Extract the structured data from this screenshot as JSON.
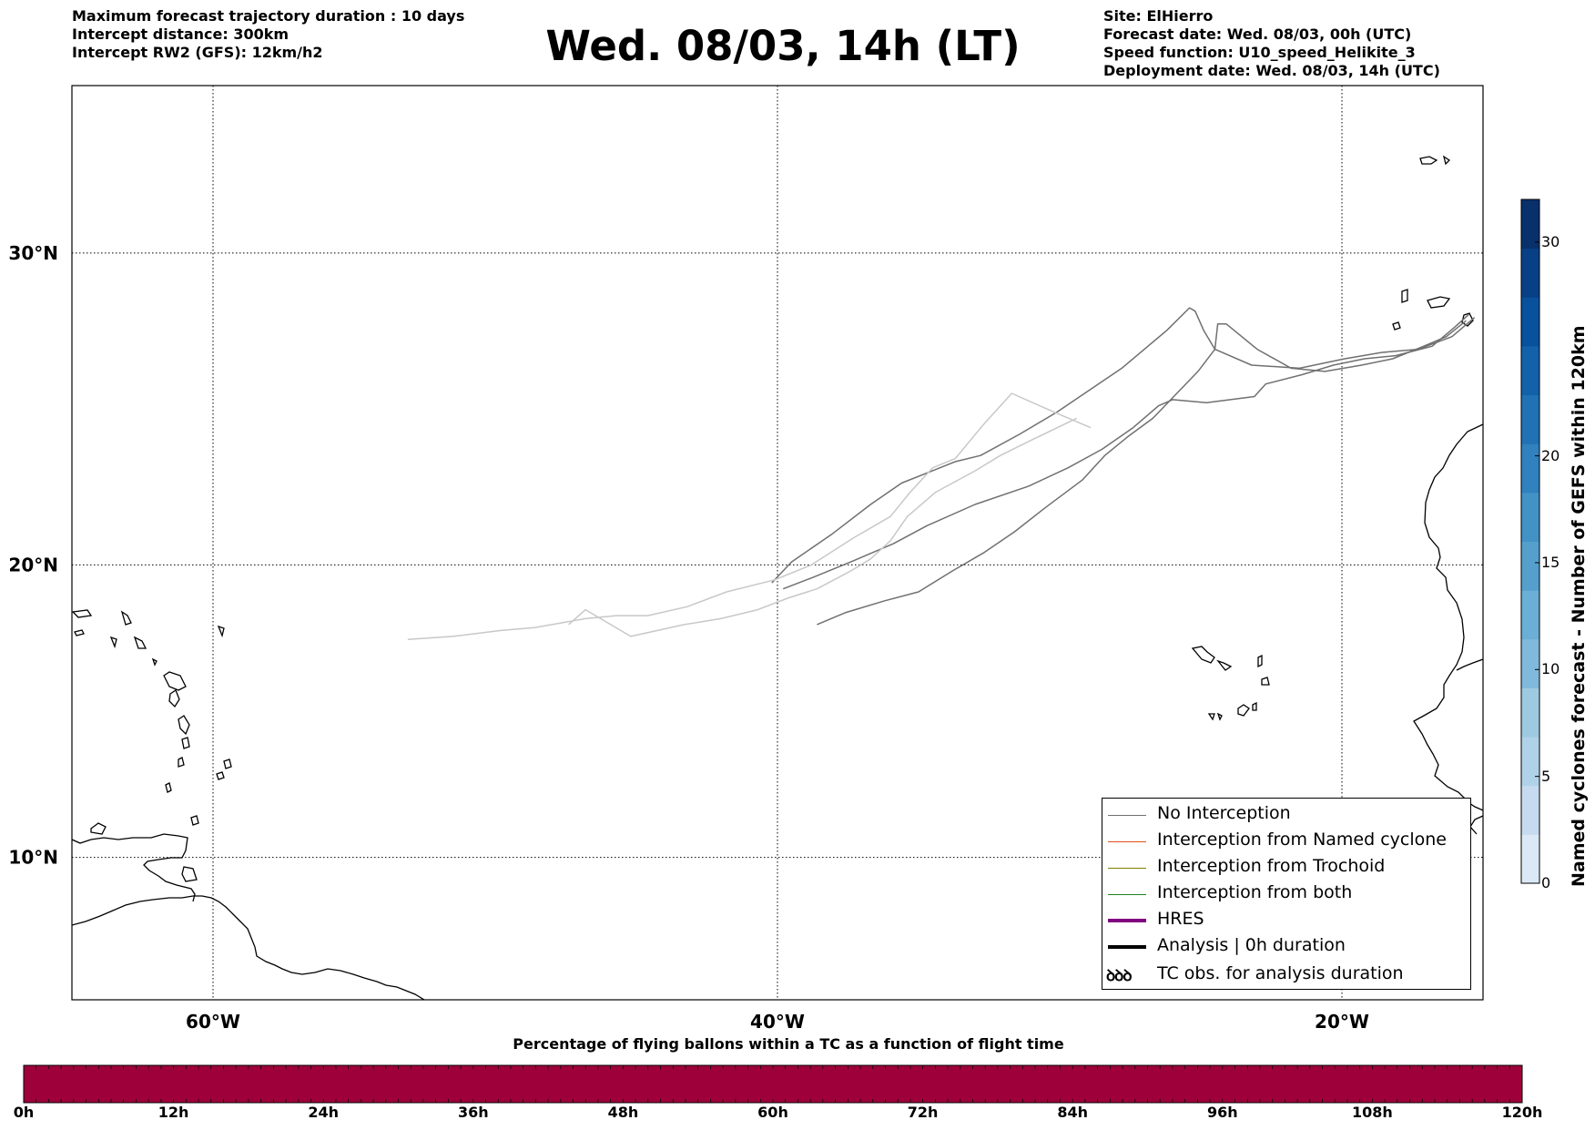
{
  "header_left": [
    "Maximum forecast trajectory duration : 10 days",
    "Intercept distance: 300km",
    "Intercept RW2 (GFS):  12km/h2"
  ],
  "title": "Wed. 08/03, 14h (LT)",
  "header_right": [
    "Site: ElHierro",
    "Forecast date: Wed. 08/03, 00h (UTC)",
    "Speed function: U10_speed_Helikite_3",
    "Deployment date: Wed. 08/03, 14h (UTC)"
  ],
  "map": {
    "lon_range": [
      -65,
      -15
    ],
    "lat_range": [
      5,
      35
    ],
    "lat_ticks": [
      {
        "value": 30,
        "label": "30°N"
      },
      {
        "value": 20,
        "label": "20°N"
      },
      {
        "value": 10,
        "label": "10°N"
      }
    ],
    "lon_ticks": [
      {
        "value": -60,
        "label": "60°W"
      },
      {
        "value": -40,
        "label": "40°W"
      },
      {
        "value": -20,
        "label": "20°W"
      }
    ],
    "gridlines": true,
    "trajectories": [
      {
        "color": "#707070",
        "points": [
          [
            -15.3,
            28.0
          ],
          [
            -16.1,
            27.4
          ],
          [
            -17.3,
            27.0
          ],
          [
            -18.6,
            26.9
          ],
          [
            -19.9,
            26.7
          ],
          [
            -21.5,
            26.4
          ],
          [
            -23.2,
            26.5
          ],
          [
            -24.5,
            27.0
          ],
          [
            -24.9,
            27.6
          ],
          [
            -25.2,
            28.2
          ],
          [
            -25.4,
            28.3
          ],
          [
            -26.2,
            27.6
          ],
          [
            -27.8,
            26.4
          ],
          [
            -30.1,
            25.0
          ],
          [
            -31.4,
            24.3
          ],
          [
            -32.8,
            23.6
          ],
          [
            -33.7,
            23.4
          ],
          [
            -35.6,
            22.7
          ],
          [
            -36.7,
            22.0
          ],
          [
            -38.1,
            21.0
          ],
          [
            -39.5,
            20.1
          ],
          [
            -40.2,
            19.4
          ]
        ]
      },
      {
        "color": "#707070",
        "points": [
          [
            -15.5,
            28.1
          ],
          [
            -16.0,
            27.7
          ],
          [
            -16.8,
            27.1
          ],
          [
            -18.1,
            26.8
          ],
          [
            -19.2,
            26.7
          ],
          [
            -20.3,
            26.5
          ],
          [
            -21.4,
            26.2
          ],
          [
            -22.7,
            25.9
          ],
          [
            -23.1,
            25.5
          ],
          [
            -24.8,
            25.3
          ],
          [
            -26.0,
            25.4
          ],
          [
            -26.5,
            25.2
          ],
          [
            -27.4,
            24.5
          ],
          [
            -28.5,
            23.8
          ],
          [
            -29.7,
            23.2
          ],
          [
            -31.1,
            22.6
          ],
          [
            -33.0,
            22.0
          ],
          [
            -34.7,
            21.3
          ],
          [
            -35.9,
            20.7
          ],
          [
            -37.4,
            20.1
          ],
          [
            -38.7,
            19.6
          ],
          [
            -39.8,
            19.2
          ]
        ]
      },
      {
        "color": "#707070",
        "points": [
          [
            -15.6,
            27.9
          ],
          [
            -16.3,
            27.4
          ],
          [
            -17.1,
            27.1
          ],
          [
            -18.2,
            26.7
          ],
          [
            -19.3,
            26.5
          ],
          [
            -20.6,
            26.3
          ],
          [
            -21.8,
            26.4
          ],
          [
            -23.0,
            27.0
          ],
          [
            -24.1,
            27.8
          ],
          [
            -24.4,
            27.8
          ],
          [
            -24.5,
            27.0
          ],
          [
            -25.1,
            26.3
          ],
          [
            -26.7,
            24.8
          ],
          [
            -27.6,
            24.2
          ],
          [
            -28.4,
            23.6
          ],
          [
            -29.2,
            22.8
          ],
          [
            -30.5,
            21.9
          ],
          [
            -31.6,
            21.1
          ],
          [
            -32.7,
            20.4
          ],
          [
            -33.8,
            19.8
          ],
          [
            -35.0,
            19.1
          ],
          [
            -36.2,
            18.8
          ],
          [
            -37.6,
            18.4
          ],
          [
            -38.6,
            18.0
          ]
        ]
      },
      {
        "color": "#c8c8c8",
        "points": [
          [
            -28.9,
            24.5
          ],
          [
            -30.2,
            25.0
          ],
          [
            -31.7,
            25.6
          ],
          [
            -32.7,
            24.6
          ],
          [
            -33.7,
            23.5
          ],
          [
            -34.5,
            23.2
          ],
          [
            -35.3,
            22.4
          ],
          [
            -36.0,
            21.6
          ],
          [
            -37.3,
            20.9
          ],
          [
            -38.8,
            20.0
          ],
          [
            -40.1,
            19.5
          ],
          [
            -41.8,
            19.1
          ],
          [
            -43.2,
            18.6
          ],
          [
            -44.6,
            18.3
          ],
          [
            -45.7,
            18.3
          ],
          [
            -46.8,
            18.2
          ],
          [
            -48.6,
            17.9
          ],
          [
            -49.8,
            17.8
          ],
          [
            -51.5,
            17.6
          ],
          [
            -53.1,
            17.5
          ]
        ]
      },
      {
        "color": "#c8c8c8",
        "points": [
          [
            -29.4,
            24.8
          ],
          [
            -31.0,
            24.1
          ],
          [
            -32.1,
            23.6
          ],
          [
            -33.0,
            23.1
          ],
          [
            -34.4,
            22.4
          ],
          [
            -35.4,
            21.6
          ],
          [
            -36.0,
            20.8
          ],
          [
            -36.7,
            20.2
          ],
          [
            -37.4,
            19.8
          ],
          [
            -38.6,
            19.2
          ],
          [
            -39.6,
            18.9
          ],
          [
            -40.7,
            18.5
          ],
          [
            -42.0,
            18.2
          ],
          [
            -43.3,
            18.0
          ],
          [
            -45.2,
            17.6
          ],
          [
            -46.8,
            18.5
          ],
          [
            -47.4,
            18.0
          ]
        ]
      }
    ]
  },
  "legend": {
    "items": [
      {
        "label": "No Interception",
        "color": "#707070",
        "width": 1
      },
      {
        "label": "Interception from Named cyclone",
        "color": "#e0501a",
        "width": 1
      },
      {
        "label": "Interception from Trochoid",
        "color": "#808000",
        "width": 1
      },
      {
        "label": "Interception from both",
        "color": "#208020",
        "width": 1
      },
      {
        "label": "HRES",
        "color": "#800080",
        "width": 4
      },
      {
        "label": "Analysis | 0h duration",
        "color": "#000000",
        "width": 4
      }
    ],
    "obs_glyph": "ꝺꝺꝺ",
    "obs_label": "TC obs. for analysis duration"
  },
  "colorbar": {
    "title": "Named cyclones forecast - Number of GEFS within 120km",
    "range": [
      0,
      32
    ],
    "ticks": [
      0,
      5,
      10,
      15,
      20,
      30
    ],
    "colors": [
      "#dbe9f6",
      "#c6dbef",
      "#b0d2e8",
      "#9ecae1",
      "#80b9db",
      "#6baed6",
      "#559fcd",
      "#4292c6",
      "#3081bd",
      "#2171b5",
      "#1361a9",
      "#08519c",
      "#084085",
      "#08306b"
    ]
  },
  "bottom_bar": {
    "title": "Percentage of flying ballons within a TC as a function of flight time",
    "color": "#9e003a",
    "ticks": [
      "0h",
      "12h",
      "24h",
      "36h",
      "48h",
      "60h",
      "72h",
      "84h",
      "96h",
      "108h",
      "120h"
    ]
  }
}
